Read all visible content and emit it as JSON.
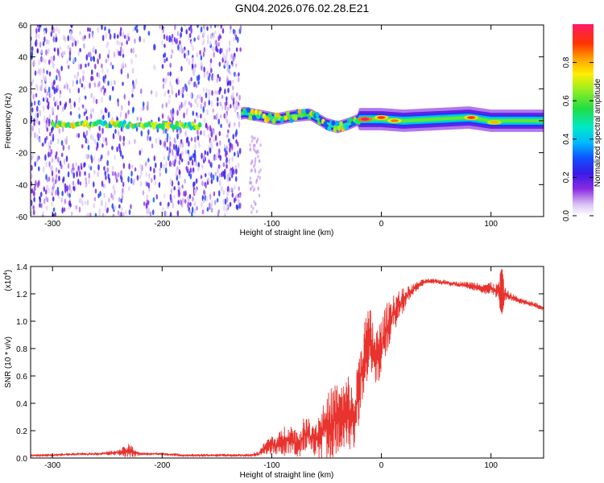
{
  "title": "GN04.2026.076.02.28.E21",
  "chart_data": [
    {
      "type": "heatmap",
      "xlabel": "Height of straight line (km)",
      "ylabel": "Frequency (Hz)",
      "xlim": [
        -320,
        148
      ],
      "ylim": [
        -60,
        60
      ],
      "xticks": [
        -300,
        -200,
        -100,
        0,
        100
      ],
      "xtick_labels": [
        "-300",
        "-200",
        "-100",
        "0",
        "100"
      ],
      "yticks": [
        -60,
        -40,
        -20,
        0,
        20,
        40,
        60
      ],
      "ytick_labels": [
        "-60",
        "-40",
        "-20",
        "0",
        "20",
        "40",
        "60"
      ],
      "colorbar": {
        "label": "Normalized spectral amplitude",
        "range": [
          0,
          1
        ],
        "ticks": [
          0.0,
          0.2,
          0.4,
          0.6,
          0.8
        ],
        "tick_labels": [
          "0.0",
          "0.2",
          "0.4",
          "0.6",
          "0.8"
        ]
      },
      "ridge": [
        {
          "x": -320,
          "y": -3
        },
        {
          "x": -300,
          "y": -3
        },
        {
          "x": -280,
          "y": -2
        },
        {
          "x": -250,
          "y": -2
        },
        {
          "x": -220,
          "y": -3
        },
        {
          "x": -190,
          "y": -3
        },
        {
          "x": -165,
          "y": -3
        },
        {
          "x": -125,
          "y": 5
        },
        {
          "x": -110,
          "y": 3
        },
        {
          "x": -95,
          "y": 1
        },
        {
          "x": -80,
          "y": 3
        },
        {
          "x": -65,
          "y": 4
        },
        {
          "x": -50,
          "y": -2
        },
        {
          "x": -40,
          "y": -4
        },
        {
          "x": -30,
          "y": -2
        },
        {
          "x": -20,
          "y": 1
        },
        {
          "x": 0,
          "y": 1
        },
        {
          "x": 20,
          "y": 0
        },
        {
          "x": 50,
          "y": 1
        },
        {
          "x": 80,
          "y": 2
        },
        {
          "x": 100,
          "y": 0
        },
        {
          "x": 120,
          "y": 0
        },
        {
          "x": 148,
          "y": 0
        }
      ],
      "peaks": [
        {
          "x": -15,
          "y": 1,
          "amplitude": 1.0
        },
        {
          "x": 0,
          "y": 2,
          "amplitude": 0.9
        },
        {
          "x": 12,
          "y": 0,
          "amplitude": 0.85
        },
        {
          "x": 82,
          "y": 2,
          "amplitude": 0.9
        },
        {
          "x": 103,
          "y": -1,
          "amplitude": 0.8
        }
      ],
      "noise_x_range": [
        -320,
        -128
      ],
      "grid": false
    },
    {
      "type": "line",
      "xlabel": "Height of straight line (km)",
      "ylabel": "SNR (10 * v/v)",
      "y_multiplier": "(x10^4)",
      "y_multiplier_base": "(x10",
      "y_multiplier_exp": "4",
      "y_multiplier_close": ")",
      "xlim": [
        -320,
        148
      ],
      "ylim": [
        0,
        1.4
      ],
      "xticks": [
        -300,
        -200,
        -100,
        0,
        100
      ],
      "xtick_labels": [
        "-300",
        "-200",
        "-100",
        "0",
        "100"
      ],
      "yticks": [
        0,
        0.2,
        0.4,
        0.6,
        0.8,
        1.0,
        1.2,
        1.4
      ],
      "ytick_labels": [
        "0.0",
        "0.2",
        "0.4",
        "0.6",
        "0.8",
        "1.0",
        "1.2",
        "1.4"
      ],
      "series": [
        {
          "color": "#e8332e",
          "x": [
            -320,
            -300,
            -280,
            -260,
            -240,
            -230,
            -220,
            -200,
            -180,
            -160,
            -140,
            -120,
            -112,
            -105,
            -100,
            -95,
            -90,
            -85,
            -80,
            -75,
            -70,
            -65,
            -60,
            -55,
            -50,
            -45,
            -40,
            -35,
            -30,
            -25,
            -20,
            -15,
            -10,
            -5,
            0,
            5,
            10,
            15,
            20,
            25,
            30,
            35,
            40,
            50,
            60,
            70,
            80,
            90,
            95,
            100,
            105,
            108,
            110,
            112,
            115,
            120,
            130,
            140,
            148
          ],
          "y": [
            0.02,
            0.02,
            0.03,
            0.03,
            0.04,
            0.05,
            0.03,
            0.03,
            0.02,
            0.02,
            0.02,
            0.02,
            0.03,
            0.08,
            0.1,
            0.09,
            0.12,
            0.15,
            0.12,
            0.1,
            0.18,
            0.16,
            0.14,
            0.18,
            0.22,
            0.26,
            0.3,
            0.28,
            0.35,
            0.25,
            0.55,
            0.78,
            0.85,
            0.7,
            0.82,
            0.95,
            1.05,
            1.1,
            1.15,
            1.2,
            1.24,
            1.27,
            1.29,
            1.29,
            1.28,
            1.27,
            1.26,
            1.25,
            1.24,
            1.24,
            1.22,
            1.22,
            1.22,
            1.2,
            1.19,
            1.17,
            1.14,
            1.12,
            1.09
          ],
          "amplitude": [
            0.01,
            0.01,
            0.01,
            0.01,
            0.02,
            0.06,
            0.01,
            0.01,
            0.01,
            0.01,
            0.01,
            0.01,
            0.02,
            0.06,
            0.08,
            0.08,
            0.12,
            0.14,
            0.12,
            0.12,
            0.14,
            0.14,
            0.16,
            0.22,
            0.26,
            0.3,
            0.3,
            0.3,
            0.3,
            0.26,
            0.3,
            0.3,
            0.28,
            0.28,
            0.22,
            0.2,
            0.18,
            0.14,
            0.1,
            0.06,
            0.04,
            0.03,
            0.02,
            0.02,
            0.02,
            0.02,
            0.03,
            0.04,
            0.05,
            0.05,
            0.06,
            0.1,
            0.14,
            0.06,
            0.04,
            0.03,
            0.02,
            0.02,
            0.02
          ]
        }
      ],
      "grid": false
    }
  ]
}
